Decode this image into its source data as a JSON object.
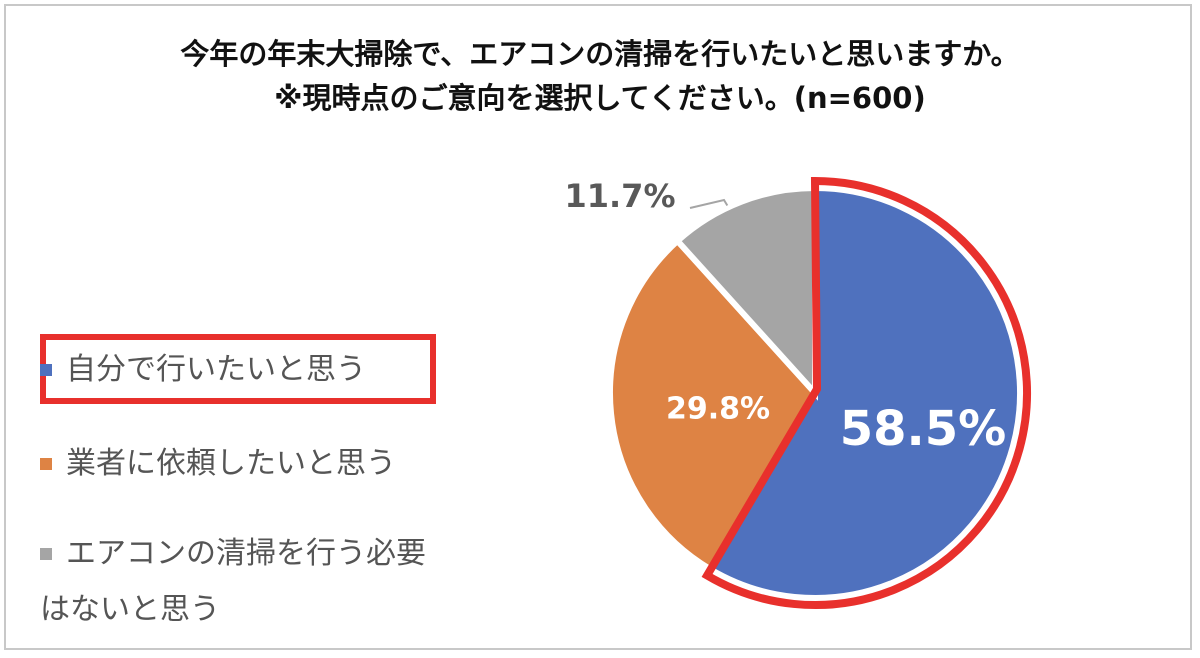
{
  "chart_data": {
    "type": "pie",
    "title_lines": [
      "今年の年末大掃除で、エアコンの清掃を行いたいと思いますか。",
      "※現時点のご意向を選択してください。(n=600)"
    ],
    "slices": [
      {
        "label": "自分で行いたいと思う",
        "value": 58.5,
        "display": "58.5%",
        "color": "#4f71be",
        "highlighted": true
      },
      {
        "label": "業者に依頼したいと思う",
        "value": 29.8,
        "display": "29.8%",
        "color": "#de8344"
      },
      {
        "label_lines": [
          "エアコンの清掃を行う必要",
          "はないと思う"
        ],
        "value": 11.7,
        "display": "11.7%",
        "color": "#a5a5a5"
      }
    ],
    "legend_position": "left",
    "highlight_color": "#e8302c"
  }
}
